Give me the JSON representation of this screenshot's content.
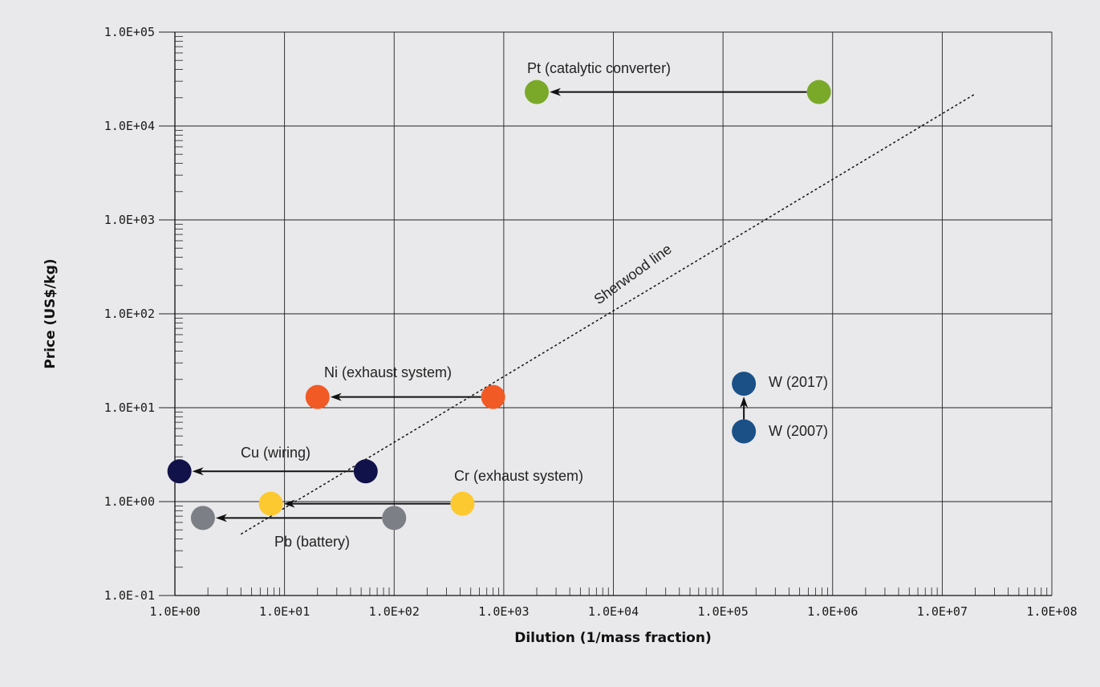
{
  "chart_data": {
    "type": "scatter",
    "title": "",
    "xlabel": "Dilution (1/mass fraction)",
    "ylabel": "Price (US$/kg)",
    "xscale": "log",
    "yscale": "log",
    "xlim": [
      1,
      100000000
    ],
    "ylim": [
      0.1,
      100000
    ],
    "x_ticks": [
      "1.0E+00",
      "1.0E+01",
      "1.0E+02",
      "1.0E+03",
      "1.0E+04",
      "1.0E+05",
      "1.0E+06",
      "1.0E+07",
      "1.0E+08"
    ],
    "y_ticks": [
      "1.0E-01",
      "1.0E+00",
      "1.0E+01",
      "1.0E+02",
      "1.0E+03",
      "1.0E+04",
      "1.0E+05"
    ],
    "grid": true,
    "background": "#e9e9eb",
    "sherwood_line": {
      "label": "Sherwood line",
      "x": [
        4,
        20000000
      ],
      "y": [
        0.45,
        22000
      ]
    },
    "series": [
      {
        "name": "Pt (catalytic converter)",
        "color": "#7aa92a",
        "from": {
          "x": 750000,
          "y": 23000
        },
        "to": {
          "x": 2000,
          "y": 23000
        }
      },
      {
        "name": "Ni (exhaust system)",
        "color": "#f15a24",
        "from": {
          "x": 800,
          "y": 13
        },
        "to": {
          "x": 20,
          "y": 13
        }
      },
      {
        "name": "Cu (wiring)",
        "color": "#12124a",
        "from": {
          "x": 55,
          "y": 2.1
        },
        "to": {
          "x": 1.1,
          "y": 2.1
        }
      },
      {
        "name": "Cr (exhaust system)",
        "color": "#fcc931",
        "from": {
          "x": 420,
          "y": 0.95
        },
        "to": {
          "x": 7.5,
          "y": 0.95
        }
      },
      {
        "name": "Pb (battery)",
        "color": "#7c7f85",
        "from": {
          "x": 100,
          "y": 0.67
        },
        "to": {
          "x": 1.8,
          "y": 0.67
        }
      },
      {
        "name": "W",
        "color": "#1b5087",
        "from": {
          "x": 155000,
          "y": 5.6
        },
        "to": {
          "x": 155000,
          "y": 18
        }
      }
    ],
    "point_labels": {
      "w_2007": "W (2007)",
      "w_2017": "W (2017)"
    }
  }
}
